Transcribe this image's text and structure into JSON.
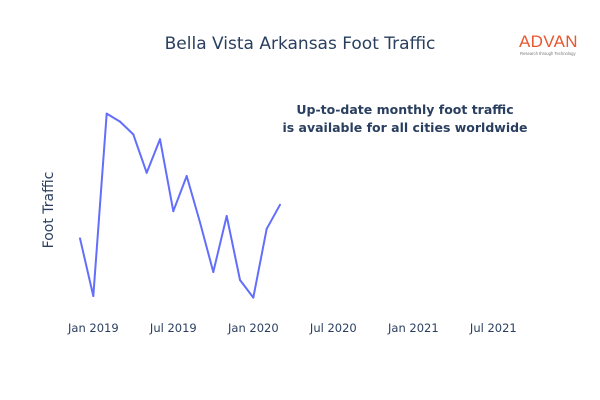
{
  "chart_data": {
    "type": "line",
    "title": "Bella Vista Arkansas Foot Traffic",
    "xlabel": "",
    "ylabel": "Foot Traffic",
    "x_tick_labels": [
      "Jan 2019",
      "Jul 2019",
      "Jan 2020",
      "Jul 2020",
      "Jan 2021",
      "Jul 2021"
    ],
    "series": [
      {
        "values": [
          {
            "x": "2018-12",
            "y": 46
          },
          {
            "x": "2019-01",
            "y": 10
          },
          {
            "x": "2019-02",
            "y": 124
          },
          {
            "x": "2019-03",
            "y": 119
          },
          {
            "x": "2019-04",
            "y": 111
          },
          {
            "x": "2019-05",
            "y": 87
          },
          {
            "x": "2019-06",
            "y": 108
          },
          {
            "x": "2019-07",
            "y": 63
          },
          {
            "x": "2019-08",
            "y": 85
          },
          {
            "x": "2019-09",
            "y": 56
          },
          {
            "x": "2019-10",
            "y": 25
          },
          {
            "x": "2019-11",
            "y": 60
          },
          {
            "x": "2019-12",
            "y": 20
          },
          {
            "x": "2020-01",
            "y": 9
          },
          {
            "x": "2020-02",
            "y": 52
          },
          {
            "x": "2020-03",
            "y": 67
          }
        ]
      }
    ],
    "xlim": [
      "2018-12",
      "2021-09"
    ],
    "ylim": [
      0,
      140
    ],
    "show_y_ticks": false,
    "grid": false,
    "color": "#636efa"
  },
  "annotation": {
    "line1": "Up-to-date monthly foot traffic",
    "line2": "is available for all cities worldwide"
  },
  "logo": {
    "word": "ADVAN",
    "tagline": "Research through Technology",
    "color": "#e8572f"
  }
}
